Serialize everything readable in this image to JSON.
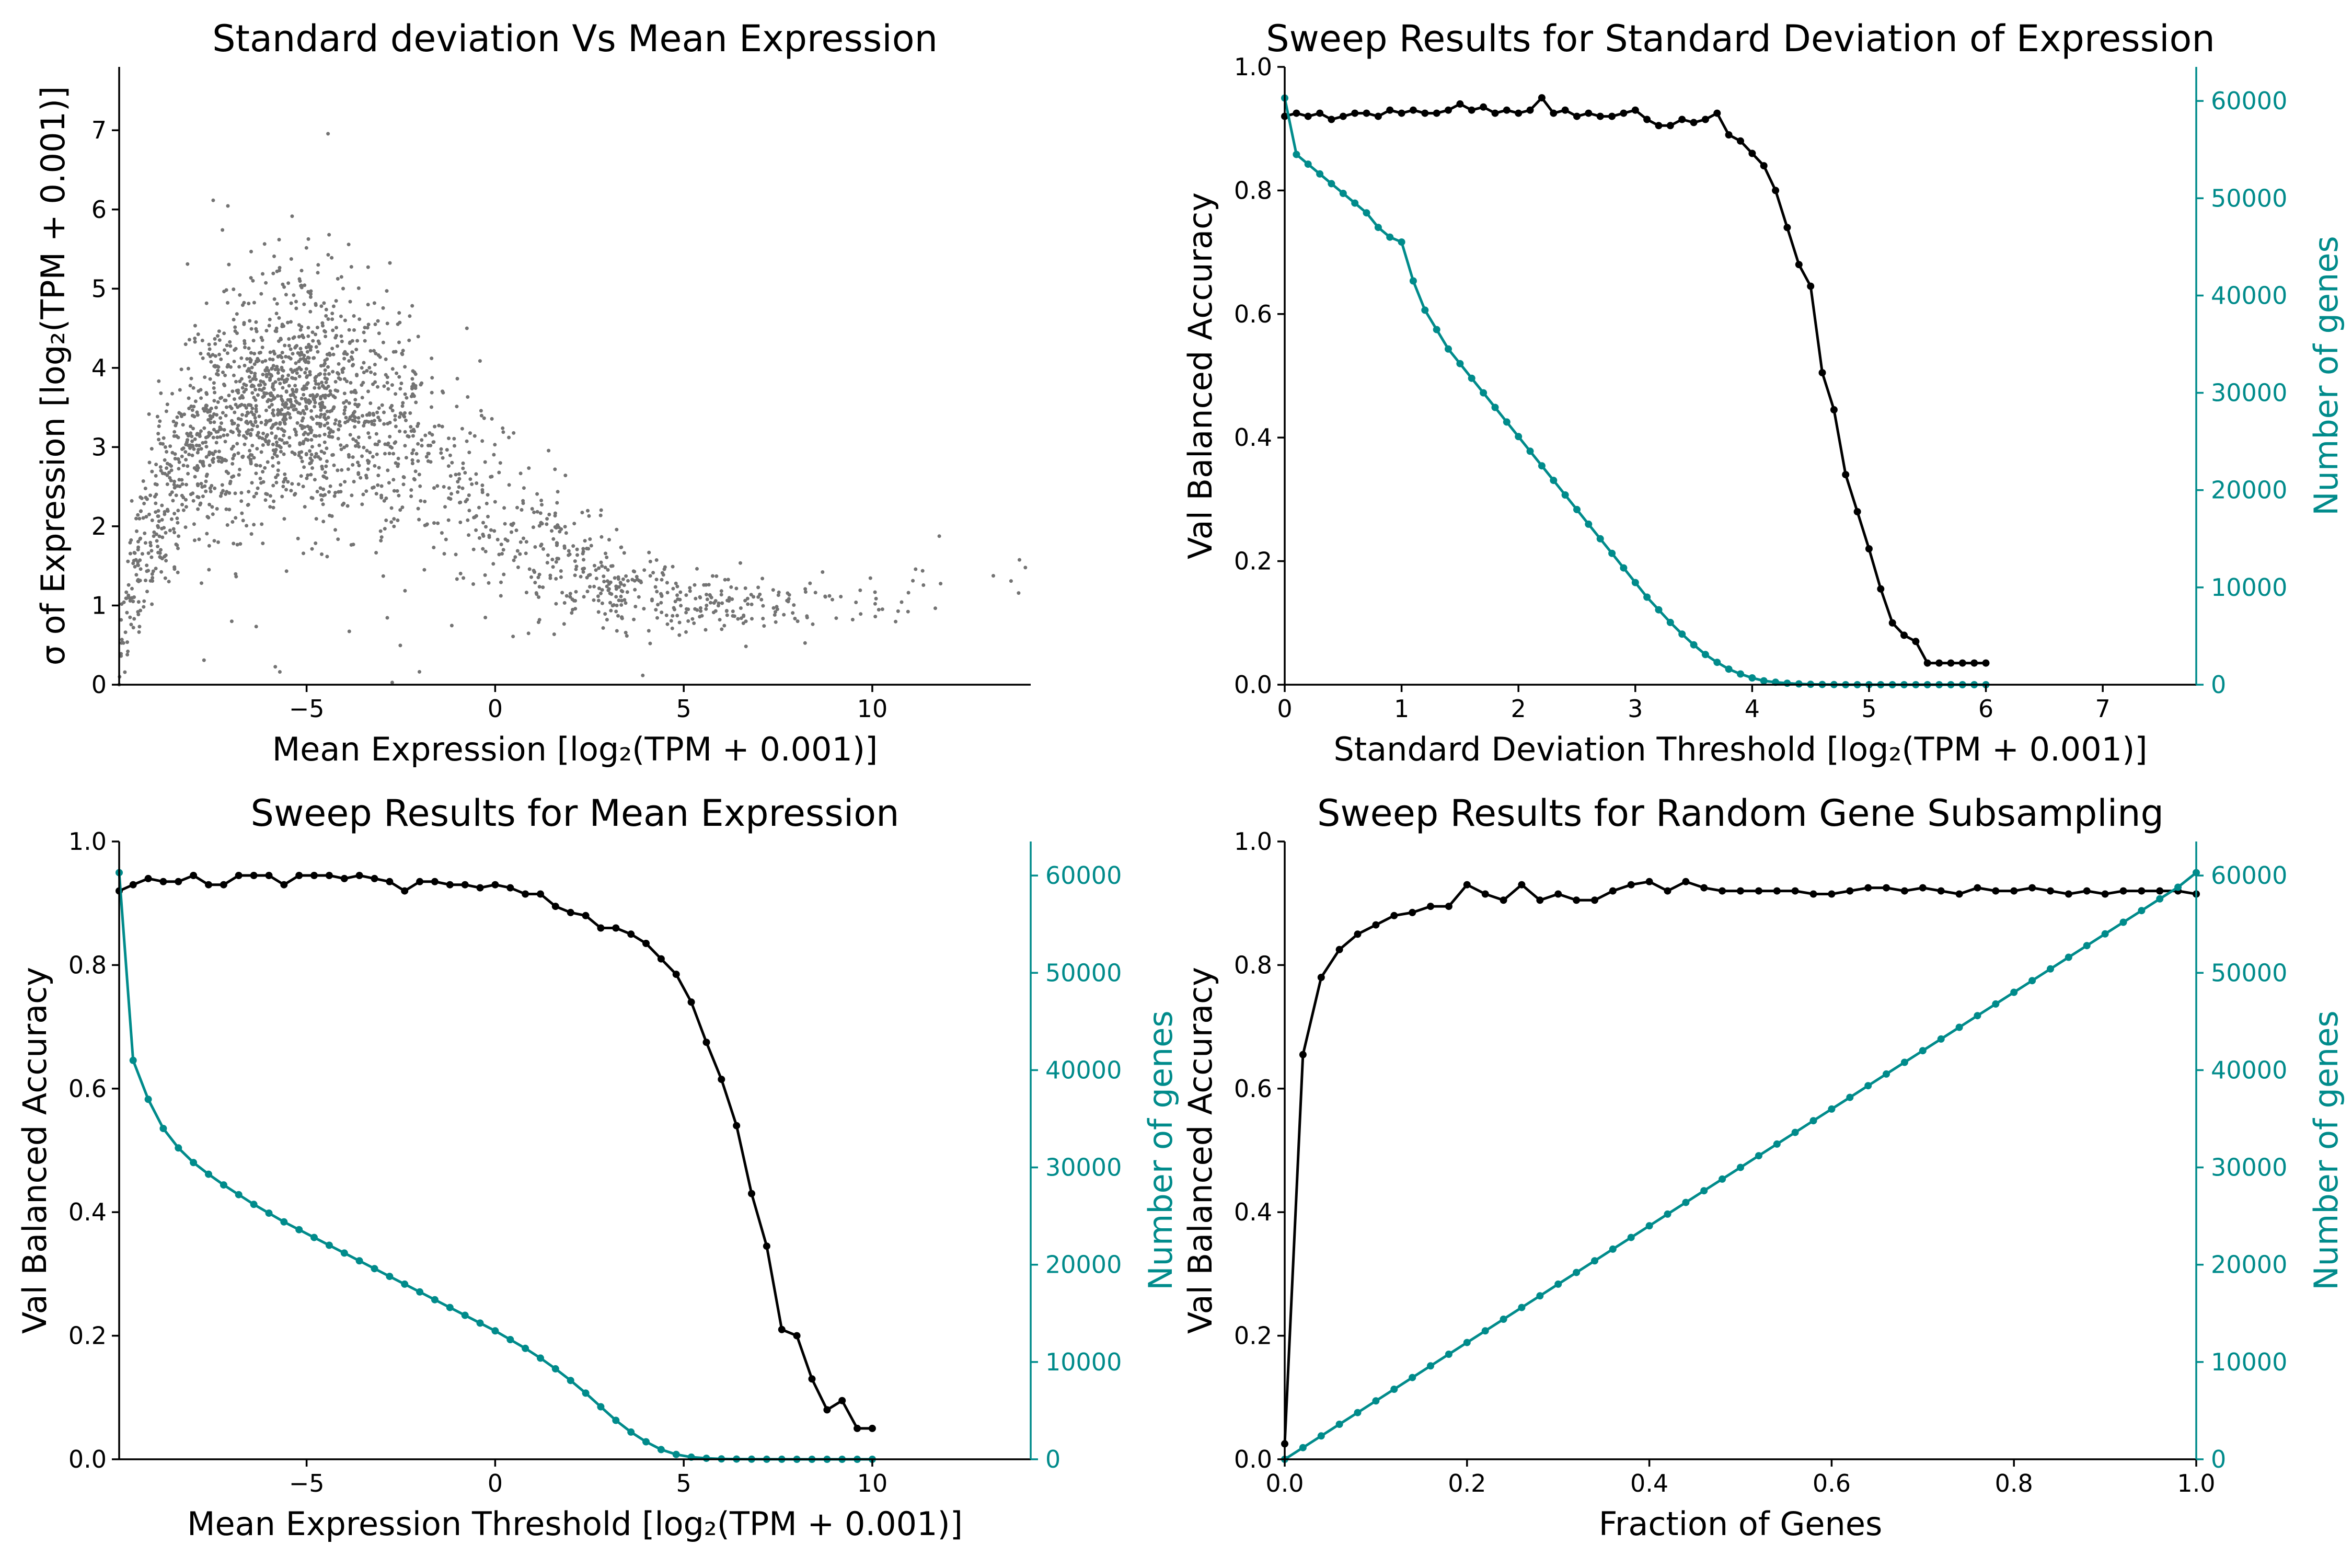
{
  "chart_data": [
    {
      "type": "scatter",
      "title": "Standard deviation Vs Mean Expression",
      "xlabel": "Mean Expression [log₂(TPM + 0.001)]",
      "ylabel": "σ of Expression [log₂(TPM + 0.001)]",
      "xlim": [
        -9.97,
        14.2
      ],
      "ylim": [
        0,
        7.8
      ],
      "xticks": [
        -5,
        0,
        5,
        10
      ],
      "xtick_labels": [
        "−5",
        "0",
        "5",
        "10"
      ],
      "yticks": [
        0,
        1,
        2,
        3,
        4,
        5,
        6,
        7
      ],
      "ytick_labels": [
        "0",
        "1",
        "2",
        "3",
        "4",
        "5",
        "6",
        "7"
      ],
      "point_color": "#000000",
      "n_points": 60000,
      "trend_x": [
        -9.97,
        -9.9,
        -9.6,
        -9,
        -8,
        -7,
        -6,
        -5,
        -4,
        -3,
        -2,
        -1,
        0,
        1,
        2,
        3,
        4,
        5,
        6,
        7,
        8,
        9,
        10,
        11,
        12,
        13,
        14
      ],
      "trend_y": [
        0,
        0.6,
        1.4,
        2.2,
        3.0,
        3.45,
        3.65,
        3.7,
        3.55,
        3.3,
        3.0,
        2.6,
        2.2,
        1.8,
        1.5,
        1.3,
        1.15,
        1.05,
        1.0,
        1.0,
        1.0,
        1.05,
        1.15,
        1.25,
        1.35,
        1.45,
        1.5
      ],
      "spread_y": [
        0,
        0.3,
        0.5,
        0.55,
        0.6,
        0.7,
        0.75,
        0.75,
        0.75,
        0.75,
        0.7,
        0.65,
        0.6,
        0.5,
        0.4,
        0.3,
        0.25,
        0.2,
        0.2,
        0.2,
        0.2,
        0.2,
        0.2,
        0.2,
        0.2,
        0.2,
        0.2
      ]
    },
    {
      "type": "line",
      "title": "Sweep Results for Standard Deviation of Expression",
      "xlabel": "Standard Deviation Threshold [log₂(TPM + 0.001)]",
      "ylabel": "Val Balanced Accuracy",
      "ylabel_right": "Number of genes",
      "xlim": [
        0,
        7.8
      ],
      "ylim": [
        0,
        1.0
      ],
      "ylim_right": [
        0,
        63500
      ],
      "xticks": [
        0,
        1,
        2,
        3,
        4,
        5,
        6,
        7
      ],
      "xtick_labels": [
        "0",
        "1",
        "2",
        "3",
        "4",
        "5",
        "6",
        "7"
      ],
      "yticks": [
        0,
        0.2,
        0.4,
        0.6,
        0.8,
        1.0
      ],
      "ytick_labels": [
        "0.0",
        "0.2",
        "0.4",
        "0.6",
        "0.8",
        "1.0"
      ],
      "yticks_right": [
        0,
        10000,
        20000,
        30000,
        40000,
        50000,
        60000
      ],
      "ytick_labels_right": [
        "0",
        "10000",
        "20000",
        "30000",
        "40000",
        "50000",
        "60000"
      ],
      "series": [
        {
          "axis": "left",
          "color": "#000000",
          "x": [
            0,
            0.1,
            0.2,
            0.3,
            0.4,
            0.5,
            0.6,
            0.7,
            0.8,
            0.9,
            1.0,
            1.1,
            1.2,
            1.3,
            1.4,
            1.5,
            1.6,
            1.7,
            1.8,
            1.9,
            2.0,
            2.1,
            2.2,
            2.3,
            2.4,
            2.5,
            2.6,
            2.7,
            2.8,
            2.9,
            3.0,
            3.1,
            3.2,
            3.3,
            3.4,
            3.5,
            3.6,
            3.7,
            3.8,
            3.9,
            4.0,
            4.1,
            4.2,
            4.3,
            4.4,
            4.5,
            4.6,
            4.7,
            4.8,
            4.9,
            5.0,
            5.1,
            5.2,
            5.3,
            5.4,
            5.5,
            5.6,
            5.7,
            5.8,
            5.9,
            6.0
          ],
          "y": [
            0.92,
            0.925,
            0.92,
            0.925,
            0.915,
            0.92,
            0.925,
            0.925,
            0.92,
            0.93,
            0.925,
            0.93,
            0.925,
            0.925,
            0.93,
            0.94,
            0.93,
            0.935,
            0.925,
            0.93,
            0.925,
            0.93,
            0.95,
            0.925,
            0.93,
            0.92,
            0.925,
            0.92,
            0.92,
            0.925,
            0.93,
            0.915,
            0.905,
            0.905,
            0.915,
            0.91,
            0.915,
            0.925,
            0.89,
            0.88,
            0.86,
            0.84,
            0.8,
            0.74,
            0.68,
            0.645,
            0.505,
            0.445,
            0.34,
            0.28,
            0.22,
            0.155,
            0.1,
            0.08,
            0.07,
            0.035,
            0.035,
            0.035,
            0.035,
            0.035,
            0.035
          ]
        },
        {
          "axis": "right",
          "color": "#008b8b",
          "x": [
            0,
            0.1,
            0.2,
            0.3,
            0.4,
            0.5,
            0.6,
            0.7,
            0.8,
            0.9,
            1.0,
            1.1,
            1.2,
            1.3,
            1.4,
            1.5,
            1.6,
            1.7,
            1.8,
            1.9,
            2.0,
            2.1,
            2.2,
            2.3,
            2.4,
            2.5,
            2.6,
            2.7,
            2.8,
            2.9,
            3.0,
            3.1,
            3.2,
            3.3,
            3.4,
            3.5,
            3.6,
            3.7,
            3.8,
            3.9,
            4.0,
            4.1,
            4.2,
            4.3,
            4.4,
            4.5,
            4.6,
            4.7,
            4.8,
            4.9,
            5.0,
            5.1,
            5.2,
            5.3,
            5.4,
            5.5,
            5.6,
            5.7,
            5.8,
            5.9,
            6.0
          ],
          "y": [
            60300,
            54500,
            53500,
            52500,
            51500,
            50500,
            49500,
            48500,
            47000,
            46000,
            45500,
            41500,
            38500,
            36500,
            34500,
            33000,
            31500,
            30000,
            28500,
            27000,
            25500,
            24000,
            22500,
            21000,
            19500,
            18000,
            16500,
            15000,
            13500,
            12000,
            10500,
            9000,
            7700,
            6400,
            5200,
            4100,
            3100,
            2300,
            1600,
            1100,
            700,
            400,
            250,
            150,
            80,
            40,
            20,
            10,
            0,
            0,
            0,
            0,
            0,
            0,
            0,
            0,
            0,
            0,
            0,
            0,
            0
          ]
        }
      ]
    },
    {
      "type": "line",
      "title": "Sweep Results for Mean Expression",
      "xlabel": "Mean Expression Threshold [log₂(TPM + 0.001)]",
      "ylabel": "Val Balanced Accuracy",
      "ylabel_right": "Number of genes",
      "xlim": [
        -9.97,
        14.2
      ],
      "ylim": [
        0,
        1.0
      ],
      "ylim_right": [
        0,
        63500
      ],
      "xticks": [
        -5,
        0,
        5,
        10
      ],
      "xtick_labels": [
        "−5",
        "0",
        "5",
        "10"
      ],
      "yticks": [
        0,
        0.2,
        0.4,
        0.6,
        0.8,
        1.0
      ],
      "ytick_labels": [
        "0.0",
        "0.2",
        "0.4",
        "0.6",
        "0.8",
        "1.0"
      ],
      "yticks_right": [
        0,
        10000,
        20000,
        30000,
        40000,
        50000,
        60000
      ],
      "ytick_labels_right": [
        "0",
        "10000",
        "20000",
        "30000",
        "40000",
        "50000",
        "60000"
      ],
      "series": [
        {
          "axis": "left",
          "color": "#000000",
          "x": [
            -9.97,
            -9.6,
            -9.2,
            -8.8,
            -8.4,
            -8.0,
            -7.6,
            -7.2,
            -6.8,
            -6.4,
            -6.0,
            -5.6,
            -5.2,
            -4.8,
            -4.4,
            -4.0,
            -3.6,
            -3.2,
            -2.8,
            -2.4,
            -2.0,
            -1.6,
            -1.2,
            -0.8,
            -0.4,
            0.0,
            0.4,
            0.8,
            1.2,
            1.6,
            2.0,
            2.4,
            2.8,
            3.2,
            3.6,
            4.0,
            4.4,
            4.8,
            5.2,
            5.6,
            6.0,
            6.4,
            6.8,
            7.2,
            7.6,
            8.0,
            8.4,
            8.8,
            9.2,
            9.6,
            10.0
          ],
          "y": [
            0.92,
            0.93,
            0.94,
            0.935,
            0.935,
            0.945,
            0.93,
            0.93,
            0.945,
            0.945,
            0.945,
            0.93,
            0.945,
            0.945,
            0.945,
            0.94,
            0.945,
            0.94,
            0.935,
            0.92,
            0.935,
            0.935,
            0.93,
            0.93,
            0.925,
            0.93,
            0.925,
            0.915,
            0.915,
            0.895,
            0.885,
            0.88,
            0.86,
            0.86,
            0.85,
            0.835,
            0.81,
            0.785,
            0.74,
            0.675,
            0.615,
            0.54,
            0.43,
            0.345,
            0.21,
            0.2,
            0.13,
            0.08,
            0.095,
            0.05,
            0.05
          ]
        },
        {
          "axis": "right",
          "color": "#008b8b",
          "x": [
            -9.97,
            -9.6,
            -9.2,
            -8.8,
            -8.4,
            -8.0,
            -7.6,
            -7.2,
            -6.8,
            -6.4,
            -6.0,
            -5.6,
            -5.2,
            -4.8,
            -4.4,
            -4.0,
            -3.6,
            -3.2,
            -2.8,
            -2.4,
            -2.0,
            -1.6,
            -1.2,
            -0.8,
            -0.4,
            0.0,
            0.4,
            0.8,
            1.2,
            1.6,
            2.0,
            2.4,
            2.8,
            3.2,
            3.6,
            4.0,
            4.4,
            4.8,
            5.2,
            5.6,
            6.0,
            6.4,
            6.8,
            7.2,
            7.6,
            8.0,
            8.4,
            8.8,
            9.2,
            9.6,
            10.0
          ],
          "y": [
            60300,
            41000,
            37000,
            34000,
            32000,
            30500,
            29300,
            28200,
            27200,
            26200,
            25300,
            24400,
            23600,
            22800,
            22000,
            21200,
            20400,
            19600,
            18800,
            18000,
            17200,
            16400,
            15600,
            14800,
            14000,
            13200,
            12300,
            11400,
            10400,
            9300,
            8100,
            6800,
            5400,
            4000,
            2800,
            1800,
            1000,
            500,
            220,
            100,
            40,
            20,
            10,
            5,
            3,
            2,
            1,
            0,
            0,
            0,
            0
          ]
        }
      ]
    },
    {
      "type": "line",
      "title": "Sweep Results for Random Gene Subsampling",
      "xlabel": "Fraction of Genes",
      "ylabel": "Val Balanced Accuracy",
      "ylabel_right": "Number of genes",
      "xlim": [
        0,
        1.0
      ],
      "ylim": [
        0,
        1.0
      ],
      "ylim_right": [
        0,
        63500
      ],
      "xticks": [
        0,
        0.2,
        0.4,
        0.6,
        0.8,
        1.0
      ],
      "xtick_labels": [
        "0.0",
        "0.2",
        "0.4",
        "0.6",
        "0.8",
        "1.0"
      ],
      "yticks": [
        0,
        0.2,
        0.4,
        0.6,
        0.8,
        1.0
      ],
      "ytick_labels": [
        "0.0",
        "0.2",
        "0.4",
        "0.6",
        "0.8",
        "1.0"
      ],
      "yticks_right": [
        0,
        10000,
        20000,
        30000,
        40000,
        50000,
        60000
      ],
      "ytick_labels_right": [
        "0",
        "10000",
        "20000",
        "30000",
        "40000",
        "50000",
        "60000"
      ],
      "series": [
        {
          "axis": "left",
          "color": "#000000",
          "x": [
            0.0,
            0.02,
            0.04,
            0.06,
            0.08,
            0.1,
            0.12,
            0.14,
            0.16,
            0.18,
            0.2,
            0.22,
            0.24,
            0.26,
            0.28,
            0.3,
            0.32,
            0.34,
            0.36,
            0.38,
            0.4,
            0.42,
            0.44,
            0.46,
            0.48,
            0.5,
            0.52,
            0.54,
            0.56,
            0.58,
            0.6,
            0.62,
            0.64,
            0.66,
            0.68,
            0.7,
            0.72,
            0.74,
            0.76,
            0.78,
            0.8,
            0.82,
            0.84,
            0.86,
            0.88,
            0.9,
            0.92,
            0.94,
            0.96,
            0.98,
            1.0
          ],
          "y": [
            0.025,
            0.655,
            0.78,
            0.825,
            0.85,
            0.865,
            0.88,
            0.885,
            0.895,
            0.895,
            0.93,
            0.915,
            0.905,
            0.93,
            0.905,
            0.915,
            0.905,
            0.905,
            0.92,
            0.93,
            0.935,
            0.92,
            0.935,
            0.925,
            0.92,
            0.92,
            0.92,
            0.92,
            0.92,
            0.915,
            0.915,
            0.92,
            0.925,
            0.925,
            0.92,
            0.925,
            0.92,
            0.915,
            0.925,
            0.92,
            0.92,
            0.925,
            0.92,
            0.915,
            0.92,
            0.915,
            0.92,
            0.92,
            0.92,
            0.92,
            0.915
          ]
        },
        {
          "axis": "right",
          "color": "#008b8b",
          "x": [
            0.0,
            0.02,
            0.04,
            0.06,
            0.08,
            0.1,
            0.12,
            0.14,
            0.16,
            0.18,
            0.2,
            0.22,
            0.24,
            0.26,
            0.28,
            0.3,
            0.32,
            0.34,
            0.36,
            0.38,
            0.4,
            0.42,
            0.44,
            0.46,
            0.48,
            0.5,
            0.52,
            0.54,
            0.56,
            0.58,
            0.6,
            0.62,
            0.64,
            0.66,
            0.68,
            0.7,
            0.72,
            0.74,
            0.76,
            0.78,
            0.8,
            0.82,
            0.84,
            0.86,
            0.88,
            0.9,
            0.92,
            0.94,
            0.96,
            0.98,
            1.0
          ],
          "y": [
            0,
            1200,
            2400,
            3600,
            4800,
            6000,
            7200,
            8400,
            9600,
            10800,
            12000,
            13200,
            14400,
            15600,
            16800,
            18000,
            19200,
            20400,
            21600,
            22800,
            24000,
            25200,
            26400,
            27600,
            28800,
            30000,
            31200,
            32400,
            33600,
            34800,
            36000,
            37200,
            38400,
            39600,
            40800,
            42000,
            43200,
            44400,
            45600,
            46800,
            48000,
            49200,
            50400,
            51600,
            52800,
            54000,
            55200,
            56400,
            57600,
            58800,
            60300
          ]
        }
      ]
    }
  ]
}
